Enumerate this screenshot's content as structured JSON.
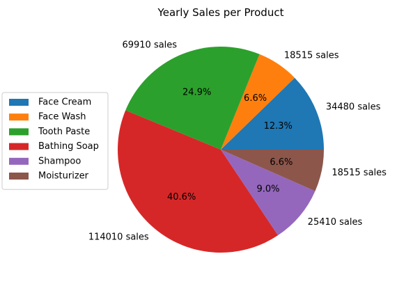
{
  "chart_data": {
    "type": "pie",
    "title": "Yearly Sales per Product",
    "legend_position": "left",
    "slices": [
      {
        "name": "Face Cream",
        "value": 34480,
        "label": "34480 sales",
        "pct_label": "12.3%",
        "color": "#1f77b4"
      },
      {
        "name": "Face Wash",
        "value": 18515,
        "label": "18515 sales",
        "pct_label": "6.6%",
        "color": "#ff7f0e"
      },
      {
        "name": "Tooth Paste",
        "value": 69910,
        "label": "69910 sales",
        "pct_label": "24.9%",
        "color": "#2ca02c"
      },
      {
        "name": "Bathing Soap",
        "value": 114010,
        "label": "114010 sales",
        "pct_label": "40.6%",
        "color": "#d62728"
      },
      {
        "name": "Shampoo",
        "value": 25410,
        "label": "25410 sales",
        "pct_label": "9.0%",
        "color": "#9467bd"
      },
      {
        "name": "Moisturizer",
        "value": 18515,
        "label": "18515 sales",
        "pct_label": "6.6%",
        "color": "#8c564b"
      }
    ]
  }
}
